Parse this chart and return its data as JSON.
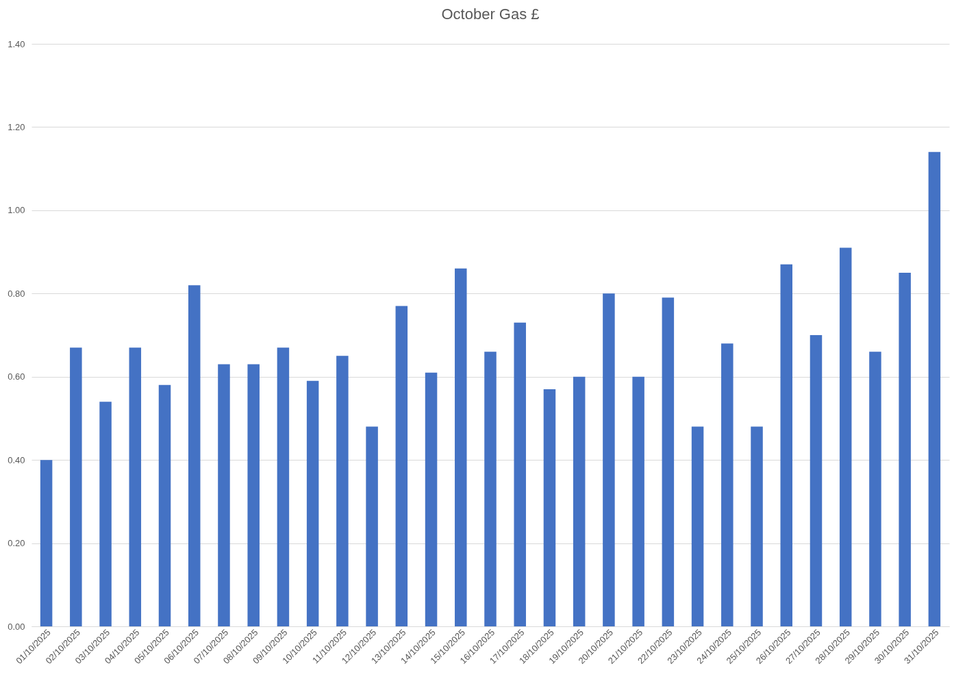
{
  "chart_data": {
    "type": "bar",
    "title": "October Gas £",
    "categories": [
      "01/10/2025",
      "02/10/2025",
      "03/10/2025",
      "04/10/2025",
      "05/10/2025",
      "06/10/2025",
      "07/10/2025",
      "08/10/2025",
      "09/10/2025",
      "10/10/2025",
      "11/10/2025",
      "12/10/2025",
      "13/10/2025",
      "14/10/2025",
      "15/10/2025",
      "16/10/2025",
      "17/10/2025",
      "18/10/2025",
      "19/10/2025",
      "20/10/2025",
      "21/10/2025",
      "22/10/2025",
      "23/10/2025",
      "24/10/2025",
      "25/10/2025",
      "26/10/2025",
      "27/10/2025",
      "28/10/2025",
      "29/10/2025",
      "30/10/2025",
      "31/10/2025"
    ],
    "values": [
      0.4,
      0.67,
      0.54,
      0.67,
      0.58,
      0.82,
      0.63,
      0.63,
      0.67,
      0.59,
      0.65,
      0.48,
      0.77,
      0.61,
      0.86,
      0.66,
      0.73,
      0.57,
      0.6,
      0.8,
      0.6,
      0.79,
      0.48,
      0.68,
      0.48,
      0.87,
      0.7,
      0.91,
      0.66,
      0.85,
      1.14
    ],
    "color": "#4472c4",
    "ylim": [
      0,
      1.4
    ],
    "yticks": [
      {
        "value": 0,
        "label": "0.00"
      },
      {
        "value": 0.2,
        "label": "0.20"
      },
      {
        "value": 0.4,
        "label": "0.40"
      },
      {
        "value": 0.6,
        "label": "0.60"
      },
      {
        "value": 0.8,
        "label": "0.80"
      },
      {
        "value": 1.0,
        "label": "1.00"
      },
      {
        "value": 1.2,
        "label": "1.20"
      },
      {
        "value": 1.4,
        "label": "1.40"
      }
    ],
    "grid": "y"
  }
}
